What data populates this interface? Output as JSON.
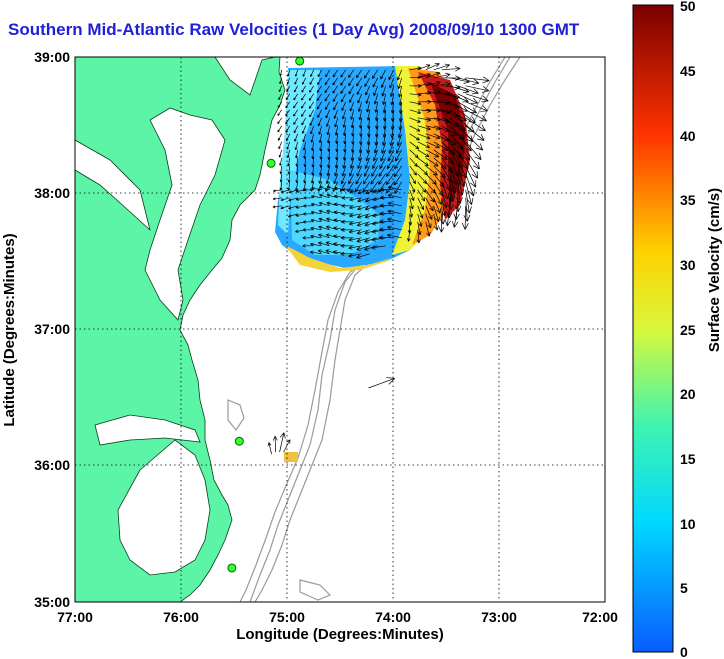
{
  "chart_data": {
    "type": "heatmap",
    "title": "Southern Mid-Atlantic Raw Velocities (1 Day Avg) 2008/09/10 1300 GMT",
    "xlabel": "Longitude (Degrees:Minutes)",
    "ylabel": "Latitude (Degrees:Minutes)",
    "x_ticks": [
      "77:00",
      "76:00",
      "75:00",
      "74:00",
      "73:00",
      "72:00"
    ],
    "y_ticks": [
      "39:00",
      "38:00",
      "37:00",
      "36:00",
      "35:00"
    ],
    "xlim": [
      -77,
      -72
    ],
    "ylim": [
      35,
      39
    ],
    "grid": true,
    "colorbar": {
      "label": "Surface Velocity (cm/s)",
      "range": [
        0,
        50
      ],
      "ticks": [
        "50",
        "45",
        "40",
        "35",
        "30",
        "25",
        "20",
        "15",
        "10",
        "5",
        "0"
      ]
    },
    "stations": [
      {
        "lon": -74.88,
        "lat": 38.97
      },
      {
        "lon": -75.15,
        "lat": 38.22
      },
      {
        "lon": -75.45,
        "lat": 36.18
      },
      {
        "lon": -75.52,
        "lat": 35.25
      }
    ],
    "vector_field": {
      "lon_range": [
        -75.05,
        -73.3
      ],
      "lat_range": [
        37.55,
        38.95
      ],
      "speed_nearshore_cm_s": 8,
      "speed_offshore_cm_s": 45,
      "direction_offshore": "northeast-to-southeast swirl",
      "direction_nearshore": "south-southwest"
    },
    "isolated_vectors": [
      {
        "lon": -74.1,
        "lat": 36.6,
        "direction": "east-northeast"
      },
      {
        "lon": -75.07,
        "lat": 36.1,
        "direction": "north"
      }
    ]
  }
}
